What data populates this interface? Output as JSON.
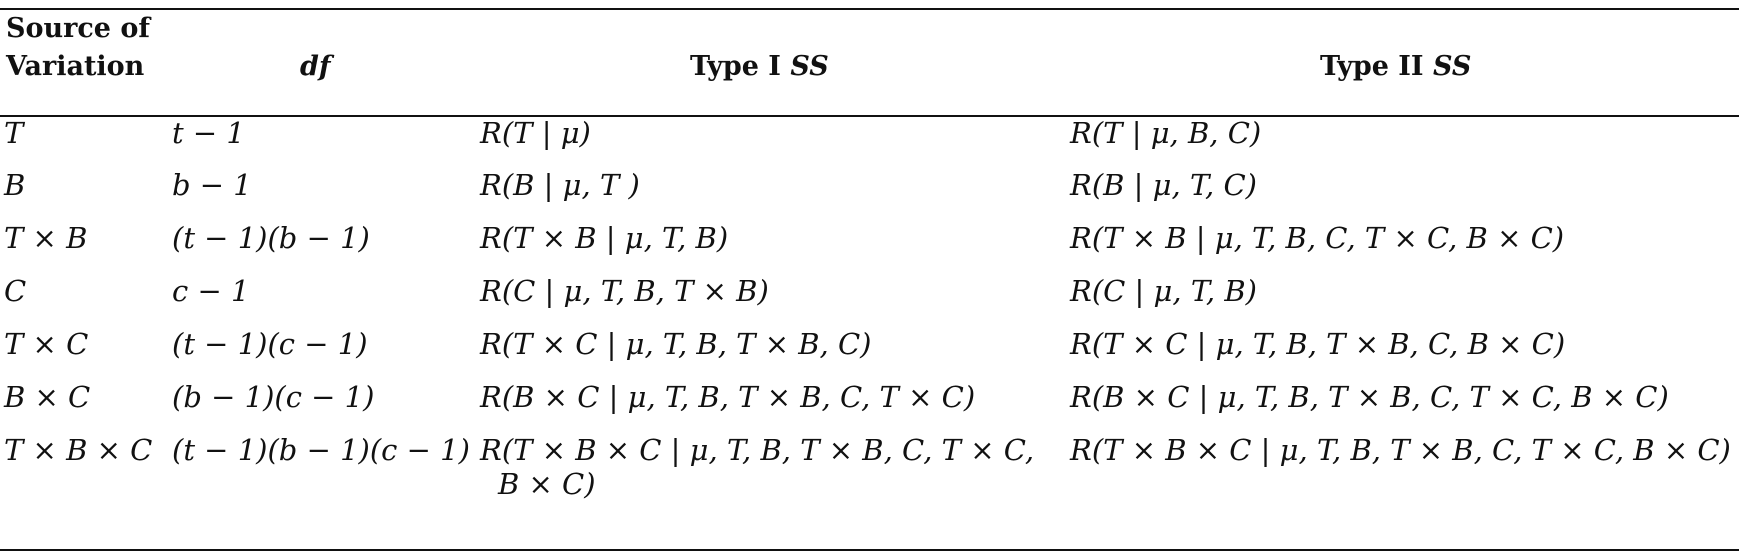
{
  "table": {
    "headers": {
      "source_line1": "Source of",
      "source_line2": "Variation",
      "df": "df",
      "type1_prefix": "Type I ",
      "type1_suffix": "SS",
      "type2_prefix": "Type II ",
      "type2_suffix": "SS"
    },
    "rows": [
      {
        "source": "T",
        "df": "t − 1",
        "type1": "R(T | μ)",
        "type2": "R(T | μ, B, C)"
      },
      {
        "source": "B",
        "df": "b − 1",
        "type1": "R(B | μ, T )",
        "type2": "R(B | μ, T, C)"
      },
      {
        "source": "T × B",
        "df": "(t − 1)(b − 1)",
        "type1": "R(T × B | μ, T, B)",
        "type2": "R(T × B | μ, T, B, C, T × C, B × C)"
      },
      {
        "source": "C",
        "df": "c − 1",
        "type1": "R(C | μ, T, B, T × B)",
        "type2": "R(C | μ, T, B)"
      },
      {
        "source": "T × C",
        "df": "(t − 1)(c − 1)",
        "type1": "R(T × C | μ, T, B, T × B, C)",
        "type2": "R(T × C | μ, T, B, T × B, C, B × C)"
      },
      {
        "source": "B × C",
        "df": "(b − 1)(c − 1)",
        "type1": "R(B × C | μ, T, B, T × B, C, T × C)",
        "type2": "R(B × C | μ, T, B, T × B, C, T × C, B × C)"
      },
      {
        "source": "T × B × C",
        "df": "(t − 1)(b − 1)(c − 1)",
        "type1_line1": "R(T × B × C | μ, T, B, T × B, C, T × C,",
        "type1_line2": "B × C)",
        "type2": "R(T × B × C | μ, T, B, T × B, C, T × C, B × C)"
      }
    ]
  }
}
